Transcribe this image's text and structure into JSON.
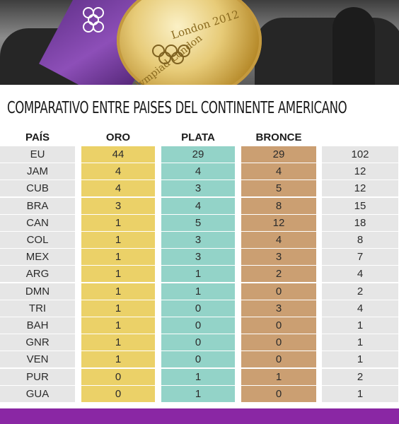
{
  "header": {
    "medal_inscription": "Olympiad London 2012",
    "medal_inscription_top": "London 2012",
    "medal_inscription_bottom": "Olympiad London"
  },
  "title": "COMPARATIVO ENTRE PAISES DEL CONTINENTE AMERICANO",
  "columns": {
    "country": "PAÍS",
    "gold": "ORO",
    "silver": "PLATA",
    "bronze": "BRONCE"
  },
  "colors": {
    "gold": "#ebd168",
    "silver": "#93d3c8",
    "bronze": "#cb9f72",
    "neutral": "#e6e6e6",
    "footer": "#8a27a4"
  },
  "rows": [
    {
      "country": "EU",
      "gold": "44",
      "silver": "29",
      "bronze": "29",
      "total": "102"
    },
    {
      "country": "JAM",
      "gold": "4",
      "silver": "4",
      "bronze": "4",
      "total": "12"
    },
    {
      "country": "CUB",
      "gold": "4",
      "silver": "3",
      "bronze": "5",
      "total": "12"
    },
    {
      "country": "BRA",
      "gold": "3",
      "silver": "4",
      "bronze": "8",
      "total": "15"
    },
    {
      "country": "CAN",
      "gold": "1",
      "silver": "5",
      "bronze": "12",
      "total": "18"
    },
    {
      "country": "COL",
      "gold": "1",
      "silver": "3",
      "bronze": "4",
      "total": "8"
    },
    {
      "country": "MEX",
      "gold": "1",
      "silver": "3",
      "bronze": "3",
      "total": "7"
    },
    {
      "country": "ARG",
      "gold": "1",
      "silver": "1",
      "bronze": "2",
      "total": "4"
    },
    {
      "country": "DMN",
      "gold": "1",
      "silver": "1",
      "bronze": "0",
      "total": "2"
    },
    {
      "country": "TRI",
      "gold": "1",
      "silver": "0",
      "bronze": "3",
      "total": "4"
    },
    {
      "country": "BAH",
      "gold": "1",
      "silver": "0",
      "bronze": "0",
      "total": "1"
    },
    {
      "country": "GNR",
      "gold": "1",
      "silver": "0",
      "bronze": "0",
      "total": "1"
    },
    {
      "country": "VEN",
      "gold": "1",
      "silver": "0",
      "bronze": "0",
      "total": "1"
    },
    {
      "country": "PUR",
      "gold": "0",
      "silver": "1",
      "bronze": "1",
      "total": "2"
    },
    {
      "country": "GUA",
      "gold": "0",
      "silver": "1",
      "bronze": "0",
      "total": "1"
    }
  ]
}
